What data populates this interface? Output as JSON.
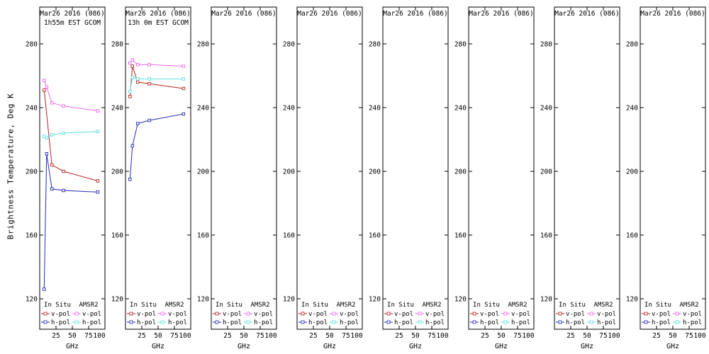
{
  "ylabel": "Brightness Temperature, Deg K",
  "xlabel": "GHz",
  "colors": {
    "insitu_v": "#bb2222",
    "insitu_h": "#2828b8",
    "amsr2_v": "#ee66ee",
    "amsr2_h": "#5fdede",
    "axis": "#000000",
    "background": "#ffffff"
  },
  "chart_data": {
    "type": "line",
    "title": "Mar26 2016 (086)",
    "xlabel": "GHz",
    "ylabel": "Brightness Temperature, Deg K",
    "xlim": [
      0,
      100
    ],
    "ylim": [
      120,
      280
    ],
    "xticks": [
      25,
      50,
      75,
      100
    ],
    "yticks": [
      120,
      160,
      200,
      240,
      280
    ],
    "grid": false,
    "legend": {
      "position": "bottom-inside",
      "columns": [
        "In Situ",
        "AMSR2"
      ],
      "rows": [
        "v-pol",
        "h-pol"
      ]
    },
    "panels": [
      {
        "title": "Mar26 2016 (086)",
        "subtitle": "1h55m EST GCOM",
        "series": [
          {
            "name": "In Situ v-pol",
            "key": "insitu_v",
            "x": [
              6.9,
              18.7,
              36.5,
              89
            ],
            "y": [
              251,
              204,
              200,
              194
            ]
          },
          {
            "name": "In Situ h-pol",
            "key": "insitu_h",
            "x": [
              6.9,
              10.65,
              18.7,
              36.5,
              89
            ],
            "y": [
              126,
              211,
              189,
              188,
              187
            ]
          },
          {
            "name": "AMSR2 v-pol",
            "key": "amsr2_v",
            "x": [
              6.9,
              10.65,
              18.7,
              36.5,
              89
            ],
            "y": [
              257,
              253,
              243,
              241,
              238
            ]
          },
          {
            "name": "AMSR2 h-pol",
            "key": "amsr2_h",
            "x": [
              6.9,
              10.65,
              18.7,
              36.5,
              89
            ],
            "y": [
              222,
              221,
              223,
              224,
              225
            ]
          }
        ]
      },
      {
        "title": "Mar26 2016 (086)",
        "subtitle": "13h 0m EST GCOM",
        "series": [
          {
            "name": "In Situ v-pol",
            "key": "insitu_v",
            "x": [
              6.9,
              10.65,
              18.7,
              36.5,
              89
            ],
            "y": [
              247,
              266,
              256,
              255,
              252
            ]
          },
          {
            "name": "In Situ h-pol",
            "key": "insitu_h",
            "x": [
              6.9,
              10.65,
              18.7,
              36.5,
              89
            ],
            "y": [
              195,
              216,
              230,
              232,
              236
            ]
          },
          {
            "name": "AMSR2 v-pol",
            "key": "amsr2_v",
            "x": [
              6.9,
              10.65,
              18.7,
              36.5,
              89
            ],
            "y": [
              268,
              270,
              267,
              267,
              266
            ]
          },
          {
            "name": "AMSR2 h-pol",
            "key": "amsr2_h",
            "x": [
              6.9,
              10.65,
              18.7,
              36.5,
              89
            ],
            "y": [
              250,
              259,
              258,
              258,
              258
            ]
          }
        ]
      },
      {
        "title": "Mar26 2016 (086)",
        "subtitle": "",
        "series": []
      },
      {
        "title": "Mar26 2016 (086)",
        "subtitle": "",
        "series": []
      },
      {
        "title": "Mar26 2016 (086)",
        "subtitle": "",
        "series": []
      },
      {
        "title": "Mar26 2016 (086)",
        "subtitle": "",
        "series": []
      },
      {
        "title": "Mar26 2016 (086)",
        "subtitle": "",
        "series": []
      },
      {
        "title": "Mar26 2016 (086)",
        "subtitle": "",
        "series": []
      }
    ]
  }
}
